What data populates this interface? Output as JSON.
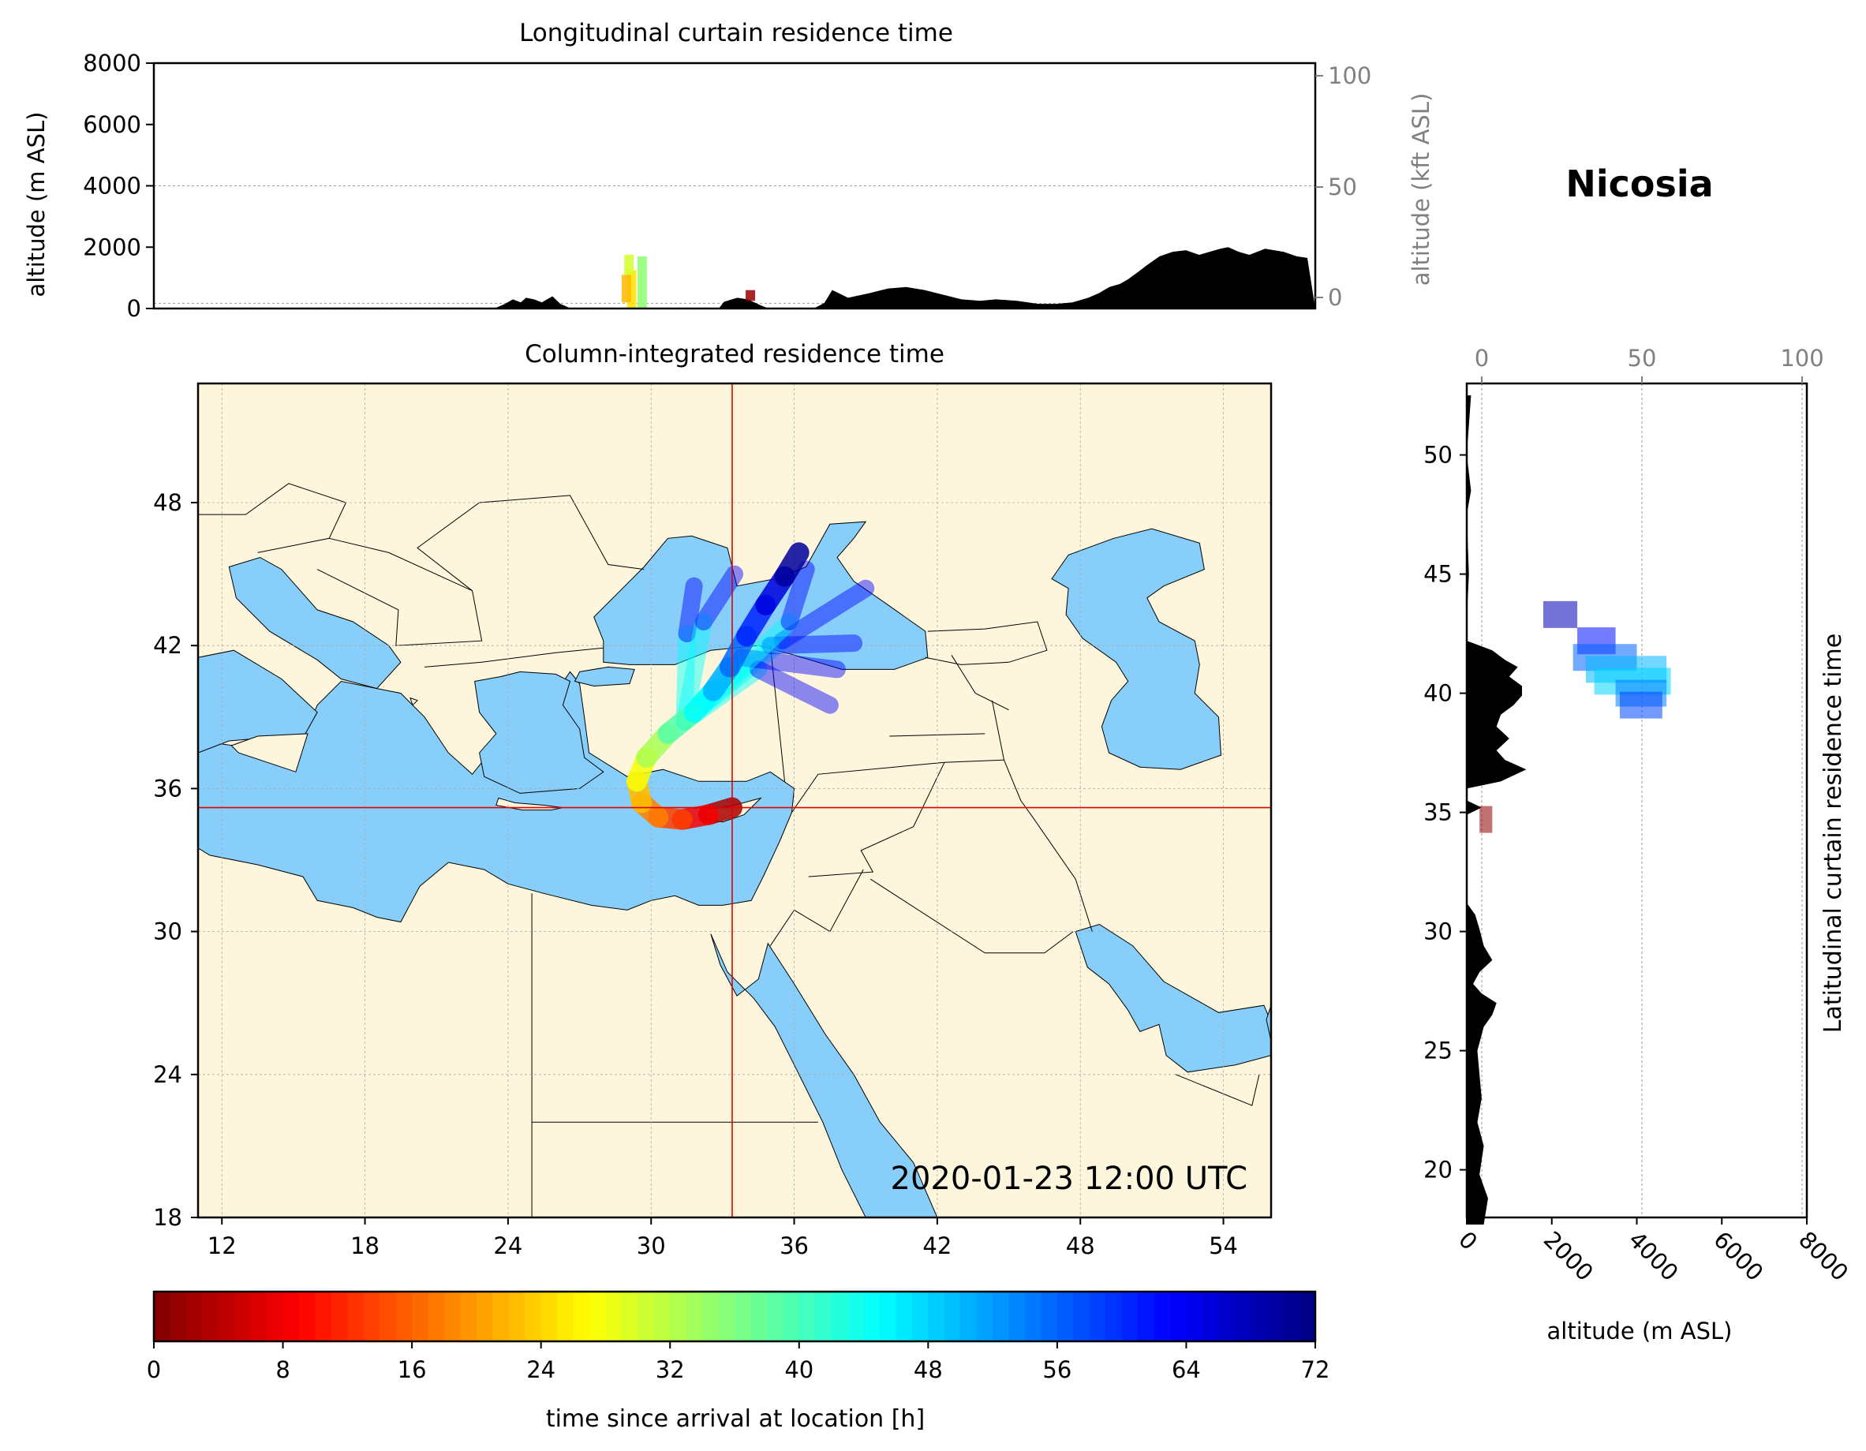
{
  "station": "Nicosia",
  "timestamp": "2020-01-23 12:00 UTC",
  "colors": {
    "land": "#fdf6dc",
    "sea": "#87cefa",
    "terrain": "#000000",
    "crosshair": "#e00000",
    "secondary_axis": "#808080",
    "grid": "#9a9a9a"
  },
  "chart_data": [
    {
      "type": "heatmap",
      "panel": "longitudinal-curtain",
      "title": "Longitudinal curtain residence time",
      "ylabel": "altitude (m ASL)",
      "ylabel_right": "altitude (kft ASL)",
      "xlim": [
        11,
        55
      ],
      "ylim": [
        0,
        8000
      ],
      "yticks": [
        0,
        2000,
        4000,
        6000,
        8000
      ],
      "yticks_right": [
        0,
        50,
        100
      ],
      "grid": true,
      "terrain_profile": {
        "x": [
          11,
          23.9,
          24.3,
          24.6,
          24.9,
          25.1,
          25.4,
          25.7,
          26.1,
          26.4,
          26.8,
          27.4,
          30,
          32.4,
          32.6,
          33.1,
          33.5,
          34,
          34.3,
          36,
          36.4,
          36.7,
          37.3,
          38.1,
          38.8,
          39.5,
          40.2,
          40.9,
          41.6,
          42.3,
          42.9,
          43.7,
          44.5,
          45.2,
          45.8,
          46.4,
          46.8,
          47.2,
          47.6,
          47.9,
          48.3,
          48.6,
          49.1,
          49.6,
          50.1,
          50.6,
          51,
          51.4,
          51.7,
          52.1,
          52.5,
          53.1,
          53.8,
          54.3,
          54.7,
          55
        ],
        "altitude": [
          0,
          0,
          150,
          300,
          200,
          350,
          300,
          200,
          400,
          150,
          0,
          0,
          0,
          0,
          220,
          350,
          300,
          100,
          0,
          0,
          180,
          600,
          350,
          500,
          650,
          700,
          600,
          450,
          300,
          250,
          300,
          250,
          150,
          150,
          200,
          350,
          500,
          700,
          800,
          950,
          1200,
          1400,
          1700,
          1850,
          1900,
          1750,
          1850,
          1950,
          2000,
          1850,
          1750,
          1950,
          1850,
          1700,
          1650,
          0
        ]
      },
      "plume_cells": [
        {
          "lon": 29.5,
          "alt_min": 0,
          "alt_max": 1700,
          "time_h": 35
        },
        {
          "lon": 29.1,
          "alt_min": 0,
          "alt_max": 1250,
          "time_h": 25
        },
        {
          "lon": 28.9,
          "alt_min": 200,
          "alt_max": 1100,
          "time_h": 22
        },
        {
          "lon": 29.0,
          "alt_min": 1100,
          "alt_max": 1750,
          "time_h": 30
        },
        {
          "lon": 33.6,
          "alt_min": 250,
          "alt_max": 600,
          "time_h": 2
        }
      ]
    },
    {
      "type": "heatmap",
      "panel": "column-integrated",
      "title": "Column-integrated residence time",
      "xlim": [
        11,
        56
      ],
      "ylim": [
        18,
        53
      ],
      "xticks": [
        12,
        18,
        24,
        30,
        36,
        42,
        48,
        54
      ],
      "yticks": [
        18,
        24,
        30,
        36,
        42,
        48
      ],
      "grid": true,
      "location": {
        "lon": 33.4,
        "lat": 35.2
      },
      "trajectory": [
        {
          "lon": 33.4,
          "lat": 35.2,
          "time_h": 0
        },
        {
          "lon": 32.4,
          "lat": 34.9,
          "time_h": 6
        },
        {
          "lon": 31.3,
          "lat": 34.7,
          "time_h": 11
        },
        {
          "lon": 30.3,
          "lat": 34.8,
          "time_h": 16
        },
        {
          "lon": 29.6,
          "lat": 35.4,
          "time_h": 20
        },
        {
          "lon": 29.4,
          "lat": 36.3,
          "time_h": 25
        },
        {
          "lon": 29.8,
          "lat": 37.3,
          "time_h": 30
        },
        {
          "lon": 30.7,
          "lat": 38.3,
          "time_h": 36
        },
        {
          "lon": 31.8,
          "lat": 39.2,
          "time_h": 42
        },
        {
          "lon": 32.6,
          "lat": 40.1,
          "time_h": 48
        },
        {
          "lon": 33.3,
          "lat": 41.1,
          "time_h": 53
        },
        {
          "lon": 34.0,
          "lat": 42.4,
          "time_h": 58
        },
        {
          "lon": 34.8,
          "lat": 43.7,
          "time_h": 63
        },
        {
          "lon": 35.6,
          "lat": 44.9,
          "time_h": 68
        },
        {
          "lon": 36.2,
          "lat": 45.9,
          "time_h": 72
        }
      ],
      "fan_branches": [
        [
          {
            "lon": 31.4,
            "lat": 38.8
          },
          {
            "lon": 35.5,
            "lat": 42.2
          },
          {
            "lon": 39.0,
            "lat": 44.4
          }
        ],
        [
          {
            "lon": 31.4,
            "lat": 38.8
          },
          {
            "lon": 35.0,
            "lat": 42.0
          },
          {
            "lon": 38.5,
            "lat": 42.1
          }
        ],
        [
          {
            "lon": 31.4,
            "lat": 38.8
          },
          {
            "lon": 34.5,
            "lat": 41.0
          },
          {
            "lon": 37.5,
            "lat": 39.5
          }
        ],
        [
          {
            "lon": 31.4,
            "lat": 38.8
          },
          {
            "lon": 33.8,
            "lat": 41.5
          },
          {
            "lon": 37.8,
            "lat": 41.0
          }
        ],
        [
          {
            "lon": 31.4,
            "lat": 38.8
          },
          {
            "lon": 31.5,
            "lat": 42.5
          },
          {
            "lon": 31.8,
            "lat": 44.5
          }
        ],
        [
          {
            "lon": 31.4,
            "lat": 38.8
          },
          {
            "lon": 32.2,
            "lat": 43.0
          },
          {
            "lon": 33.5,
            "lat": 45.0
          }
        ],
        [
          {
            "lon": 31.4,
            "lat": 38.8
          },
          {
            "lon": 35.8,
            "lat": 43.0
          },
          {
            "lon": 36.5,
            "lat": 45.2
          }
        ]
      ]
    },
    {
      "type": "heatmap",
      "panel": "latitudinal-curtain",
      "title": "Latitudinal curtain residence time",
      "xlabel": "altitude (m ASL)",
      "xlim": [
        0,
        8000
      ],
      "xticks": [
        0,
        2000,
        4000,
        6000,
        8000
      ],
      "xticks_top": [
        0,
        50,
        100
      ],
      "ylim": [
        18,
        53
      ],
      "yticks": [
        20,
        25,
        30,
        35,
        40,
        45,
        50
      ],
      "grid": true,
      "terrain_profile": {
        "lat": [
          17.7,
          18.8,
          19.8,
          21,
          22,
          23,
          24,
          25,
          26,
          26.5,
          27,
          27.4,
          27.8,
          28.3,
          28.8,
          29.4,
          30.1,
          30.7,
          31.2,
          32,
          33.5,
          34.9,
          35.2,
          35.5,
          36,
          36.3,
          36.8,
          37.2,
          37.6,
          38.1,
          38.6,
          39.1,
          39.5,
          39.9,
          40.3,
          40.7,
          41.1,
          41.4,
          41.8,
          42.2,
          43,
          45,
          47.5,
          48.5,
          50,
          52.5
        ],
        "altitude": [
          400,
          500,
          300,
          400,
          250,
          350,
          300,
          250,
          400,
          600,
          700,
          350,
          150,
          300,
          600,
          400,
          300,
          200,
          0,
          0,
          0,
          0,
          350,
          0,
          0,
          800,
          1400,
          900,
          700,
          1000,
          700,
          800,
          1100,
          1300,
          1300,
          1000,
          1200,
          900,
          600,
          0,
          0,
          50,
          0,
          100,
          0,
          100
        ]
      },
      "plume_cells": [
        {
          "lat": 43.7,
          "alt_min": 1800,
          "alt_max": 2600,
          "time_h": 68
        },
        {
          "lat": 42.6,
          "alt_min": 2600,
          "alt_max": 3500,
          "time_h": 62
        },
        {
          "lat": 41.9,
          "alt_min": 2500,
          "alt_max": 4000,
          "time_h": 56
        },
        {
          "lat": 41.4,
          "alt_min": 2800,
          "alt_max": 4700,
          "time_h": 50
        },
        {
          "lat": 40.9,
          "alt_min": 3000,
          "alt_max": 4800,
          "time_h": 48
        },
        {
          "lat": 40.4,
          "alt_min": 3500,
          "alt_max": 4700,
          "time_h": 54
        },
        {
          "lat": 39.9,
          "alt_min": 3600,
          "alt_max": 4600,
          "time_h": 58
        },
        {
          "lat": 35.1,
          "alt_min": 300,
          "alt_max": 600,
          "time_h": 1
        }
      ]
    },
    {
      "type": "heatmap",
      "panel": "colorbar",
      "xlabel": "time since arrival at location [h]",
      "range": [
        0,
        72
      ],
      "ticks": [
        0,
        8,
        16,
        24,
        32,
        40,
        48,
        56,
        64,
        72
      ],
      "colormap": "jet_r"
    }
  ]
}
